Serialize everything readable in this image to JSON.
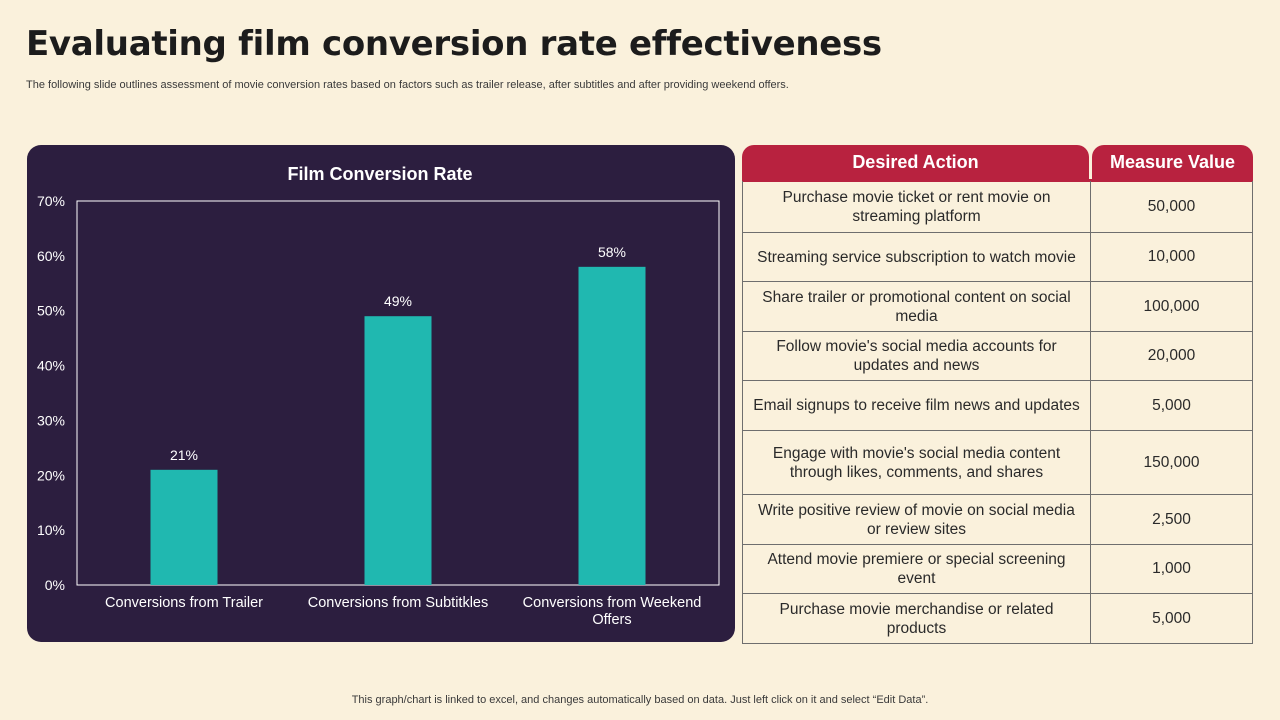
{
  "page": {
    "title": "Evaluating film conversion rate effectiveness",
    "subtitle": "The following slide outlines assessment of movie conversion rates based on factors such as trailer release, after subtitles and after providing weekend offers.",
    "footer": "This graph/chart is linked to excel,  and changes automatically based on data. Just left click on it and select “Edit Data”."
  },
  "colors": {
    "background": "#faf1dc",
    "chart_panel": "#2c1e3f",
    "bar": "#20b8b0",
    "table_header": "#b8223f"
  },
  "chart_data": {
    "type": "bar",
    "title": "Film Conversion Rate",
    "categories": [
      [
        "Conversions from Trailer"
      ],
      [
        "Conversions from Subtitkles"
      ],
      [
        "Conversions from Weekend",
        "Offers"
      ]
    ],
    "values": [
      21,
      49,
      58
    ],
    "value_labels": [
      "21%",
      "49%",
      "58%"
    ],
    "ylim": [
      0,
      70
    ],
    "yticks": [
      "0%",
      "10%",
      "20%",
      "30%",
      "40%",
      "50%",
      "60%",
      "70%"
    ],
    "xlabel": "",
    "ylabel": "",
    "grid": false
  },
  "table": {
    "headers": {
      "action": "Desired Action",
      "value": "Measure Value"
    },
    "rows": [
      {
        "action": "Purchase movie ticket or rent movie on streaming platform",
        "value": "50,000"
      },
      {
        "action": "Streaming service subscription to watch movie",
        "value": "10,000"
      },
      {
        "action": "Share trailer or promotional content on social media",
        "value": "100,000"
      },
      {
        "action": "Follow movie's social media accounts for updates and news",
        "value": "20,000"
      },
      {
        "action": "Email signups to receive film news and updates",
        "value": "5,000"
      },
      {
        "action": "Engage with movie's social media content through likes, comments, and shares",
        "value": "150,000"
      },
      {
        "action": "Write positive review of movie on social media or review sites",
        "value": "2,500"
      },
      {
        "action": "Attend movie premiere or special screening event",
        "value": "1,000"
      },
      {
        "action": "Purchase movie merchandise or related products",
        "value": "5,000"
      }
    ]
  }
}
